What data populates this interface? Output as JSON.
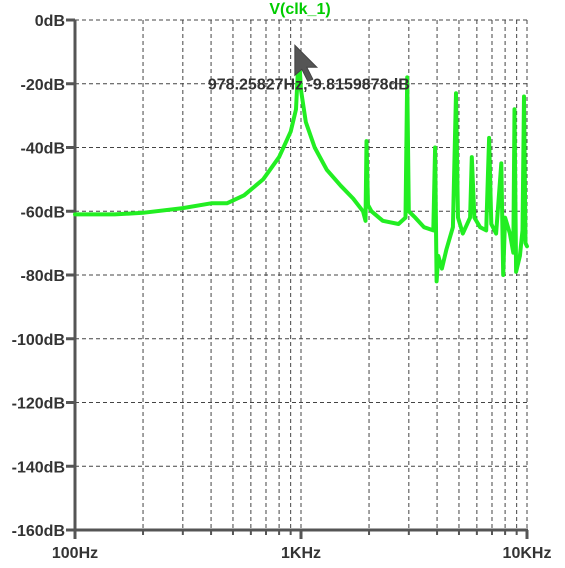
{
  "chart_data": {
    "type": "line",
    "title": "V(clk_1)",
    "x_scale": "log",
    "xlim": [
      100,
      10000
    ],
    "ylim": [
      -160,
      0
    ],
    "grid": true,
    "x_ticks": [
      {
        "value": 100,
        "label": "100Hz"
      },
      {
        "value": 1000,
        "label": "1KHz"
      },
      {
        "value": 10000,
        "label": "10KHz"
      }
    ],
    "y_ticks": [
      {
        "value": 0,
        "label": "0dB"
      },
      {
        "value": -20,
        "label": "-20dB"
      },
      {
        "value": -40,
        "label": "-40dB"
      },
      {
        "value": -60,
        "label": "-60dB"
      },
      {
        "value": -80,
        "label": "-80dB"
      },
      {
        "value": -100,
        "label": "-100dB"
      },
      {
        "value": -120,
        "label": "-120dB"
      },
      {
        "value": -140,
        "label": "-140dB"
      },
      {
        "value": -160,
        "label": "-160dB"
      }
    ],
    "series": [
      {
        "name": "V(clk_1)",
        "color": "#22ee22",
        "points": [
          [
            100,
            -61
          ],
          [
            150,
            -61
          ],
          [
            200,
            -60.5
          ],
          [
            300,
            -59
          ],
          [
            400,
            -57.5
          ],
          [
            470,
            -57.5
          ],
          [
            560,
            -55
          ],
          [
            680,
            -50
          ],
          [
            800,
            -43
          ],
          [
            900,
            -35
          ],
          [
            950,
            -28
          ],
          [
            978,
            -10
          ],
          [
            1000,
            -22
          ],
          [
            1050,
            -32
          ],
          [
            1150,
            -40
          ],
          [
            1300,
            -47
          ],
          [
            1500,
            -52
          ],
          [
            1700,
            -56
          ],
          [
            1880,
            -60
          ],
          [
            1930,
            -63
          ],
          [
            1950,
            -38
          ],
          [
            1980,
            -58
          ],
          [
            2050,
            -60
          ],
          [
            2300,
            -63
          ],
          [
            2700,
            -64
          ],
          [
            2900,
            -62
          ],
          [
            2950,
            -18
          ],
          [
            3000,
            -60
          ],
          [
            3200,
            -62
          ],
          [
            3500,
            -65
          ],
          [
            3850,
            -66
          ],
          [
            3920,
            -40
          ],
          [
            3980,
            -82
          ],
          [
            4050,
            -74
          ],
          [
            4200,
            -78
          ],
          [
            4400,
            -72
          ],
          [
            4700,
            -65
          ],
          [
            4850,
            -23
          ],
          [
            4950,
            -62
          ],
          [
            5200,
            -67
          ],
          [
            5600,
            -62
          ],
          [
            5700,
            -43
          ],
          [
            5850,
            -62
          ],
          [
            6200,
            -65
          ],
          [
            6600,
            -66
          ],
          [
            6800,
            -37
          ],
          [
            6950,
            -64
          ],
          [
            7300,
            -67
          ],
          [
            7700,
            -45
          ],
          [
            7850,
            -80
          ],
          [
            8000,
            -62
          ],
          [
            8400,
            -67
          ],
          [
            8700,
            -73
          ],
          [
            8800,
            -28
          ],
          [
            8950,
            -79
          ],
          [
            9300,
            -74
          ],
          [
            9550,
            -66
          ],
          [
            9700,
            -24
          ],
          [
            9850,
            -70
          ],
          [
            10000,
            -71
          ]
        ]
      }
    ],
    "cursor": {
      "x": 978.25827,
      "y": -9.8159878,
      "label": "978.25827Hz,-9.8159878dB"
    }
  },
  "colors": {
    "trace": "#22ee22",
    "axis": "#555555",
    "grid": "#444444",
    "text": "#333333",
    "title": "#00cc00"
  }
}
